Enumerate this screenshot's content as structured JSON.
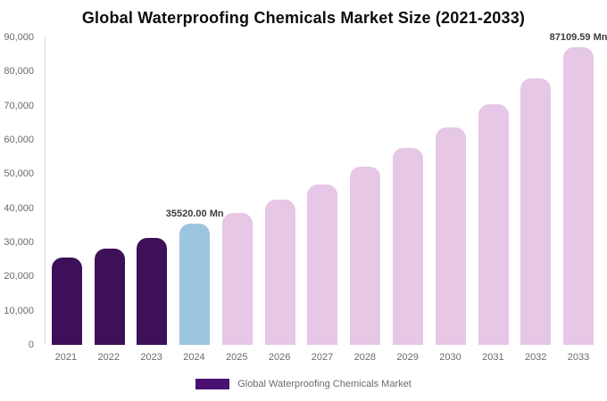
{
  "chart_data": {
    "type": "bar",
    "title": "Global Waterproofing Chemicals Market Size (2021-2033)",
    "categories": [
      "2021",
      "2022",
      "2023",
      "2024",
      "2025",
      "2026",
      "2027",
      "2028",
      "2029",
      "2030",
      "2031",
      "2032",
      "2033"
    ],
    "values": [
      25600,
      28300,
      31400,
      35520,
      38600,
      42500,
      47000,
      52200,
      57600,
      63700,
      70500,
      78100,
      87109.59
    ],
    "unit": "Mn",
    "ylim": [
      0,
      90000
    ],
    "ytick_step": 10000,
    "yticks": [
      "0",
      "10,000",
      "20,000",
      "30,000",
      "40,000",
      "50,000",
      "60,000",
      "70,000",
      "80,000",
      "90,000"
    ],
    "grid": false,
    "legend": "Global Waterproofing Chemicals Market",
    "legend_position": "bottom",
    "colors": [
      "#3d1059",
      "#3d1059",
      "#3d1059",
      "#9cc6e0",
      "#e6c7e6",
      "#e6c7e6",
      "#e6c7e6",
      "#e6c7e6",
      "#e6c7e6",
      "#e6c7e6",
      "#e6c7e6",
      "#e6c7e6",
      "#e6c7e6"
    ],
    "accent_colors": {
      "dark_purple": "#3d1059",
      "highlight_blue": "#9cc6e0",
      "light_pink": "#e6c7e6",
      "legend_swatch": "#4a1173"
    },
    "annotations": [
      {
        "category": "2024",
        "text": "35520.00 Mn"
      },
      {
        "category": "2033",
        "text": "87109.59 Mn"
      }
    ]
  }
}
